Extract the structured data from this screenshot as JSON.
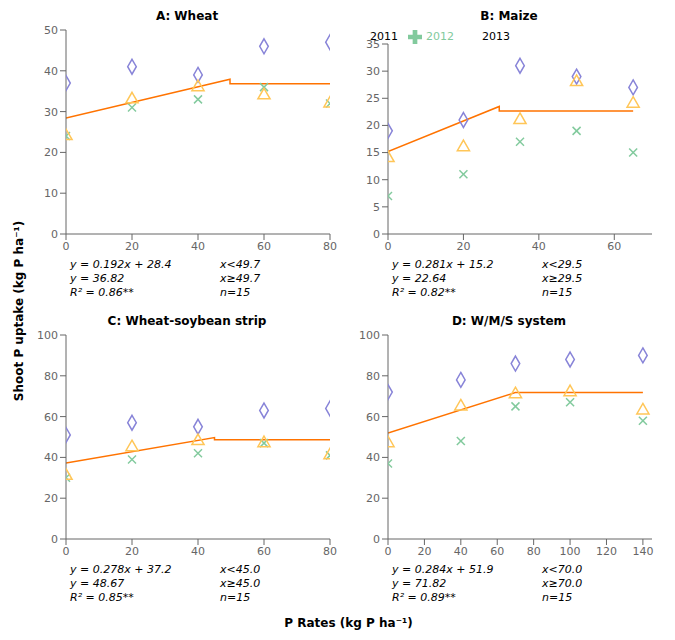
{
  "chart_data": [
    {
      "type": "scatter",
      "title": "A: Wheat",
      "xlim": [
        0,
        80
      ],
      "ylim": [
        0,
        50
      ],
      "xticks": [
        0,
        20,
        40,
        60,
        80
      ],
      "yticks": [
        0,
        10,
        20,
        30,
        40,
        50
      ],
      "grid": false,
      "series": [
        {
          "name": "2011",
          "marker": "diamond",
          "color": "#8884d8",
          "x": [
            0,
            20,
            40,
            60,
            80
          ],
          "values": [
            37,
            41,
            39,
            46,
            47
          ]
        },
        {
          "name": "2012",
          "marker": "x",
          "color": "#82ca9d",
          "x": [
            0,
            20,
            40,
            60,
            80
          ],
          "values": [
            24,
            31,
            33,
            36,
            32
          ]
        },
        {
          "name": "2013",
          "marker": "triangle",
          "color": "#ffc658",
          "x": [
            0,
            20,
            40,
            60,
            80
          ],
          "values": [
            24,
            33,
            36,
            34,
            32
          ]
        },
        {
          "type": "line",
          "color": "#ff7300",
          "x": [
            0,
            49.7,
            49.7,
            80
          ],
          "values": [
            28.4,
            37.9424,
            36.82,
            36.82
          ]
        }
      ],
      "annotations": [
        "y = 0.192x + 28.4",
        "x<49.7",
        "y = 36.82",
        "x≥49.7",
        "R² = 0.86**",
        "n=15"
      ]
    },
    {
      "type": "scatter",
      "title": "B: Maize",
      "xlim": [
        0,
        70
      ],
      "ylim": [
        0,
        35
      ],
      "xticks": [
        0,
        20,
        40,
        60
      ],
      "yticks": [
        0,
        5,
        10,
        15,
        20,
        25,
        30,
        35
      ],
      "grid": false,
      "legend": "upper left",
      "series": [
        {
          "name": "2011",
          "marker": "diamond",
          "color": "#8884d8",
          "x": [
            0,
            20,
            35,
            50,
            65
          ],
          "values": [
            19,
            21,
            31,
            29,
            27
          ]
        },
        {
          "name": "2012",
          "marker": "x",
          "color": "#82ca9d",
          "x": [
            0,
            20,
            35,
            50,
            65
          ],
          "values": [
            7,
            11,
            17,
            19,
            15
          ]
        },
        {
          "name": "2013",
          "marker": "triangle",
          "color": "#ffc658",
          "x": [
            0,
            20,
            35,
            50,
            65
          ],
          "values": [
            14,
            16,
            21,
            28,
            24
          ]
        },
        {
          "type": "line",
          "color": "#ff7300",
          "x": [
            0,
            29.5,
            29.5,
            65
          ],
          "values": [
            15.2,
            23.4895,
            22.64,
            22.64
          ]
        }
      ],
      "annotations": [
        "y = 0.281x + 15.2",
        "x<29.5",
        "y = 22.64",
        "x≥29.5",
        "R² = 0.82**",
        "n=15"
      ]
    },
    {
      "type": "scatter",
      "title": "C: Wheat-soybean strip",
      "xlim": [
        0,
        80
      ],
      "ylim": [
        0,
        100
      ],
      "xticks": [
        0,
        20,
        40,
        60,
        80
      ],
      "yticks": [
        0,
        20,
        40,
        60,
        80,
        100
      ],
      "grid": false,
      "series": [
        {
          "name": "2011",
          "marker": "diamond",
          "color": "#8884d8",
          "x": [
            0,
            20,
            40,
            60,
            80
          ],
          "values": [
            51,
            57,
            55,
            63,
            64
          ]
        },
        {
          "name": "2012",
          "marker": "x",
          "color": "#82ca9d",
          "x": [
            0,
            20,
            40,
            60,
            80
          ],
          "values": [
            30,
            39,
            42,
            47,
            41
          ]
        },
        {
          "name": "2013",
          "marker": "triangle",
          "color": "#ffc658",
          "x": [
            0,
            20,
            40,
            60,
            80
          ],
          "values": [
            31,
            45,
            48,
            47,
            41
          ]
        },
        {
          "type": "line",
          "color": "#ff7300",
          "x": [
            0,
            45.0,
            45.0,
            80
          ],
          "values": [
            37.2,
            49.71,
            48.67,
            48.67
          ]
        }
      ],
      "annotations": [
        "y = 0.278x + 37.2",
        "x<45.0",
        "y = 48.67",
        "x≥45.0",
        "R² = 0.85**",
        "n=15"
      ]
    },
    {
      "type": "scatter",
      "title": "D: W/M/S system",
      "xlim": [
        0,
        145
      ],
      "ylim": [
        0,
        100
      ],
      "xticks": [
        0,
        20,
        40,
        60,
        80,
        100,
        120,
        140
      ],
      "yticks": [
        0,
        20,
        40,
        60,
        80,
        100
      ],
      "grid": false,
      "series": [
        {
          "name": "2011",
          "marker": "diamond",
          "color": "#8884d8",
          "x": [
            0,
            40,
            70,
            100,
            140
          ],
          "values": [
            72,
            78,
            86,
            88,
            90
          ]
        },
        {
          "name": "2012",
          "marker": "x",
          "color": "#82ca9d",
          "x": [
            0,
            40,
            70,
            100,
            140
          ],
          "values": [
            37,
            48,
            65,
            67,
            58
          ]
        },
        {
          "name": "2013",
          "marker": "triangle",
          "color": "#ffc658",
          "x": [
            0,
            40,
            70,
            100,
            140
          ],
          "values": [
            47,
            65,
            71,
            72,
            63
          ]
        },
        {
          "type": "line",
          "color": "#ff7300",
          "x": [
            0,
            70.0,
            70.0,
            140
          ],
          "values": [
            51.9,
            71.78,
            71.82,
            71.82
          ]
        }
      ],
      "annotations": [
        "y = 0.284x + 51.9",
        "x<70.0",
        "y = 71.82",
        "x≥70.0",
        "R² = 0.89**",
        "n=15"
      ]
    }
  ],
  "xlabel": "P Rates (kg P ha⁻¹)",
  "ylabel": "Shoot P uptake (kg P ha⁻¹)"
}
